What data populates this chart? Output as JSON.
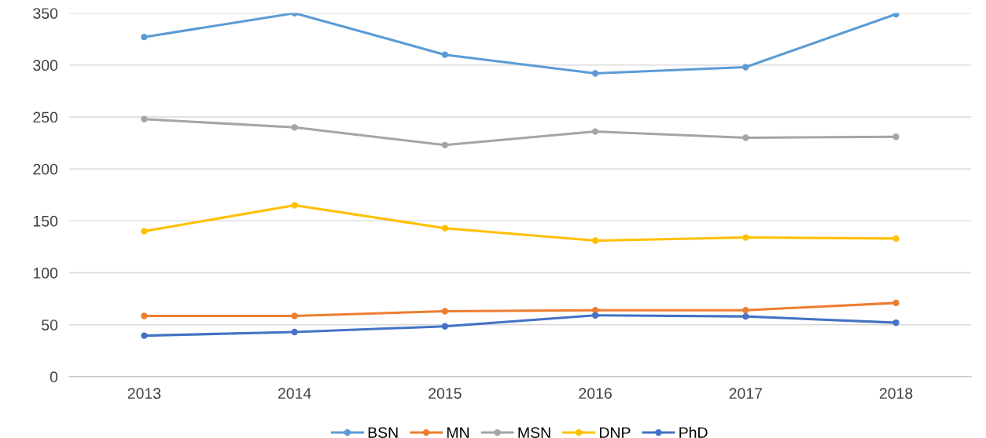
{
  "chart_data": {
    "type": "line",
    "categories": [
      "2013",
      "2014",
      "2015",
      "2016",
      "2017",
      "2018"
    ],
    "series": [
      {
        "name": "BSN",
        "color": "#5b9bd5",
        "values": [
          327,
          350,
          310,
          292,
          298,
          349
        ]
      },
      {
        "name": "MN",
        "color": "#ed7d31",
        "values": [
          58.5,
          58.5,
          63,
          64,
          64,
          71
        ]
      },
      {
        "name": "MSN",
        "color": "#a5a5a5",
        "values": [
          248,
          240,
          223,
          236,
          230,
          231
        ]
      },
      {
        "name": "DNP",
        "color": "#ffc000",
        "values": [
          140,
          165,
          143,
          131,
          134,
          133
        ]
      },
      {
        "name": "PhD",
        "color": "#4472c4",
        "values": [
          39.5,
          43,
          48.5,
          59,
          58,
          52
        ]
      }
    ],
    "ylim": [
      0,
      350
    ],
    "yticks": [
      0,
      50,
      100,
      150,
      200,
      250,
      300,
      350
    ],
    "grid": "y",
    "legend": "bottom",
    "marker": "circle",
    "line_style": "solid"
  }
}
